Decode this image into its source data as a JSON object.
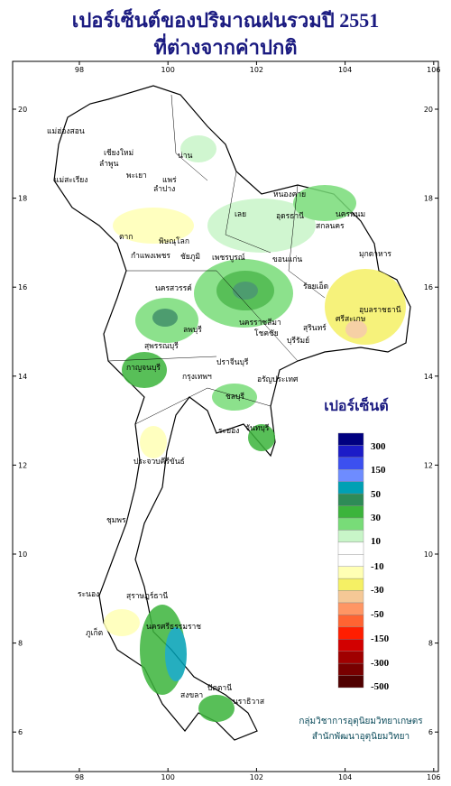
{
  "title": [
    "เปอร์เซ็นต์ของปริมาณฝนรวมปี 2551",
    "ที่ต่างจากค่าปกติ"
  ],
  "lon_ticks": [
    98,
    100,
    102,
    104,
    106
  ],
  "lat_ticks": [
    20,
    18,
    16,
    14,
    12,
    10,
    8,
    6
  ],
  "legend": {
    "title": "เปอร์เซ็นต์",
    "labels": [
      300,
      150,
      50,
      30,
      10,
      -10,
      -30,
      -50,
      -150,
      -300,
      -500
    ],
    "colors": [
      "#000080",
      "#1c1cc8",
      "#3c50f0",
      "#6e8cff",
      "#00a0b4",
      "#2e8b57",
      "#3cb43c",
      "#78dc78",
      "#c8f5c8",
      "#ffffff",
      "#ffffff",
      "#ffffb4",
      "#f5f064",
      "#f5c896",
      "#ff9664",
      "#ff6432",
      "#ff1e00",
      "#d20000",
      "#a00000",
      "#780000",
      "#500000"
    ]
  },
  "provinces": [
    "แม่ฮ่องสอน",
    "เชียงใหม่",
    "ลำพูน",
    "น่าน",
    "พะเยา",
    "แพร่",
    "ลำปาง",
    "แม่สะเรียง",
    "หนองคาย",
    "อุดรธานี",
    "สกลนคร",
    "นครพนม",
    "มุกดาหาร",
    "เลย",
    "ตาก",
    "พิษณุโลก",
    "กำแพงเพชร",
    "เพชรบูรณ์",
    "ขอนแก่น",
    "ชัยภูมิ",
    "นครสวรรค์",
    "ร้อยเอ็ด",
    "อุบลราชธานี",
    "ศรีสะเกษ",
    "สุรินทร์",
    "ลพบุรี",
    "นครราชสีมา",
    "โชคชัย",
    "บุรีรัมย์",
    "สุพรรณบุรี",
    "กาญจนบุรี",
    "ปราจีนบุรี",
    "กรุงเทพฯ",
    "อรัญประเทศ",
    "ชลบุรี",
    "ระยอง",
    "จันทบุรี",
    "ประจวบคีรีขันธ์",
    "ชุมพร",
    "ระนอง",
    "สุราษฎร์ธานี",
    "นครศรีธรรมราช",
    "ภูเก็ต",
    "สงขลา",
    "ปัตตานี",
    "นราธิวาส"
  ],
  "credit": [
    "กลุ่มวิชาการอุตุนิยมวิทยาเกษตร",
    "สำนักพัฒนาอุตุนิยมวิทยา"
  ]
}
